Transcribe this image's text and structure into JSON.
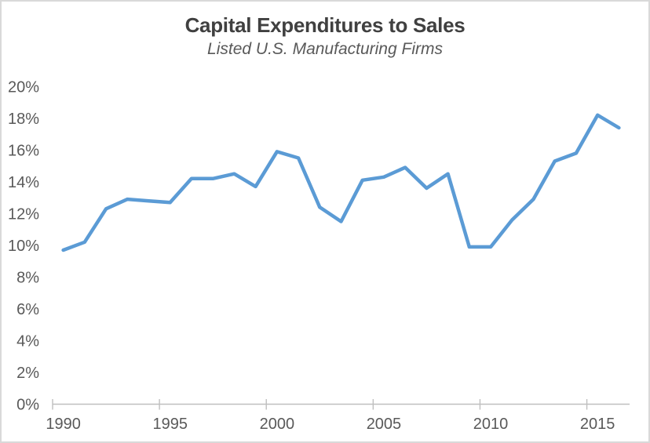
{
  "window": {
    "background": "#ffffff",
    "border_color": "#d9d9d9"
  },
  "chart_data": {
    "type": "line",
    "title": "Capital Expenditures to Sales",
    "subtitle": "Listed U.S. Manufacturing Firms",
    "x": [
      1990,
      1991,
      1992,
      1993,
      1994,
      1995,
      1996,
      1997,
      1998,
      1999,
      2000,
      2001,
      2002,
      2003,
      2004,
      2005,
      2006,
      2007,
      2008,
      2009,
      2010,
      2011,
      2012,
      2013,
      2014,
      2015,
      2016
    ],
    "values": [
      9.7,
      10.2,
      12.3,
      12.9,
      12.8,
      12.7,
      14.2,
      14.2,
      14.5,
      13.7,
      15.9,
      15.5,
      12.4,
      11.5,
      14.1,
      14.3,
      14.9,
      13.6,
      14.5,
      9.9,
      9.9,
      11.6,
      12.9,
      15.3,
      15.8,
      18.2,
      17.4
    ],
    "xlabel": "",
    "ylabel": "",
    "ylim": [
      0,
      20
    ],
    "y_tick_step": 2,
    "y_tick_suffix": "%",
    "x_tick_labels": [
      "1990",
      "1995",
      "2000",
      "2005",
      "2010",
      "2015"
    ],
    "x_tick_interval": 5,
    "grid": false,
    "legend": "none",
    "line_color": "#5B9BD5",
    "axis_color": "#BFBFBF",
    "label_color": "#595959",
    "title_color": "#404040"
  }
}
